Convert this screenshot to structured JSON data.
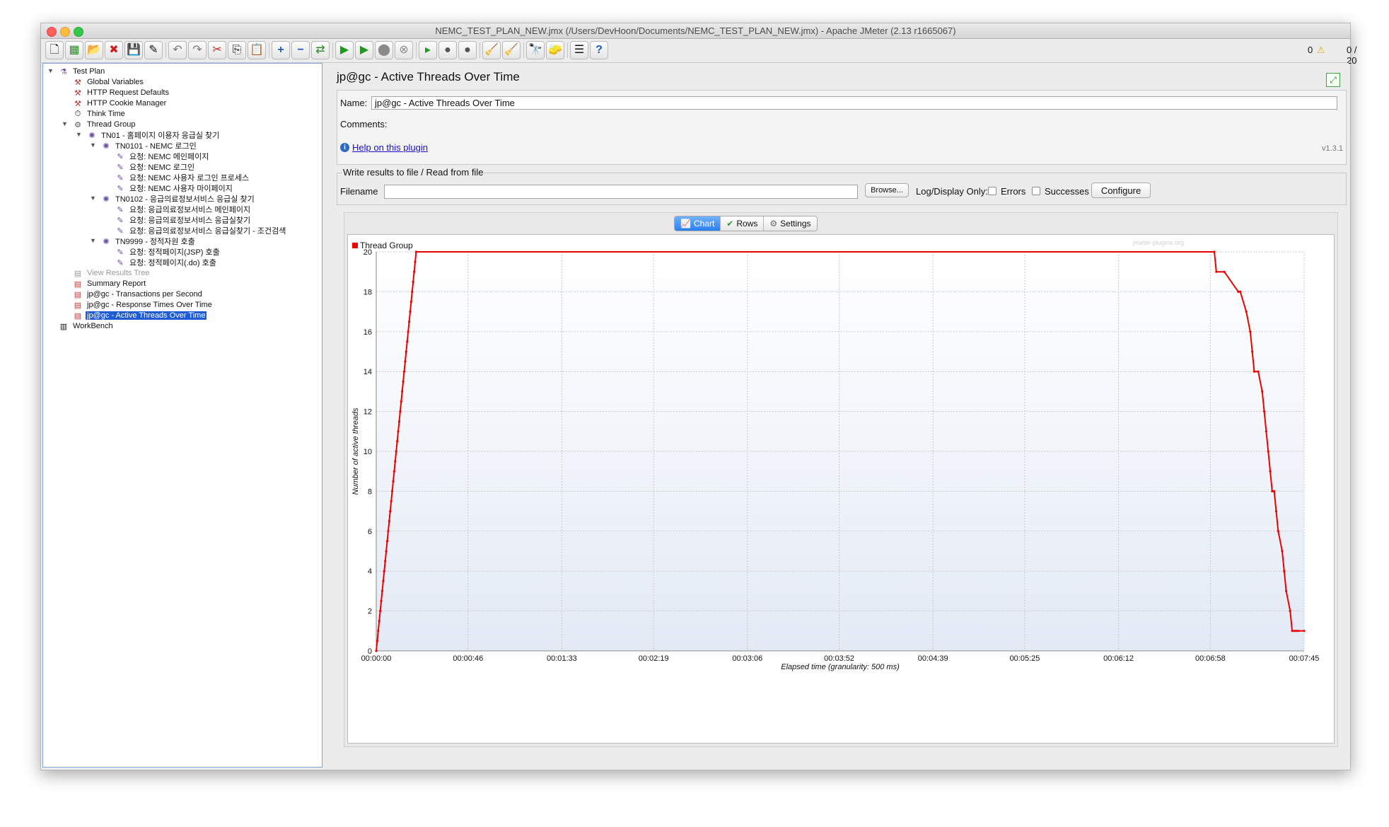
{
  "window": {
    "title": "NEMC_TEST_PLAN_NEW.jmx (/Users/DevHoon/Documents/NEMC_TEST_PLAN_NEW.jmx) - Apache JMeter (2.13 r1665067)"
  },
  "toolbar": {
    "errors_count": "0",
    "threads_status": "0 / 20"
  },
  "tree": [
    {
      "label": "Test Plan",
      "icon": "flask-icon"
    },
    {
      "label": "Global Variables",
      "icon": "config-icon"
    },
    {
      "label": "HTTP Request Defaults",
      "icon": "config-icon"
    },
    {
      "label": "HTTP Cookie Manager",
      "icon": "config-icon"
    },
    {
      "label": "Think Time",
      "icon": "timer-icon"
    },
    {
      "label": "Thread Group",
      "icon": "thread-group-icon"
    },
    {
      "label": "TN01 - 홈페이지 이용자 응급실 찾기",
      "icon": "controller-icon"
    },
    {
      "label": "TN0101 - NEMC 로그인",
      "icon": "controller-icon"
    },
    {
      "label": "요청: NEMC 메인페이지",
      "icon": "sampler-icon"
    },
    {
      "label": "요청: NEMC 로그인",
      "icon": "sampler-icon"
    },
    {
      "label": "요청: NEMC 사용자 로그인 프로세스",
      "icon": "sampler-icon"
    },
    {
      "label": "요청: NEMC 사용자 마이페이지",
      "icon": "sampler-icon"
    },
    {
      "label": "TN0102 - 응급의료정보서비스 응급실 찾기",
      "icon": "controller-icon"
    },
    {
      "label": "요청: 응급의료정보서비스 메인페이지",
      "icon": "sampler-icon"
    },
    {
      "label": "요청: 응급의료정보서비스 응급실찾기",
      "icon": "sampler-icon"
    },
    {
      "label": "요청: 응급의료정보서비스 응급실찾기 - 조건검색",
      "icon": "sampler-icon"
    },
    {
      "label": "TN9999 - 정적자원 호출",
      "icon": "controller-icon"
    },
    {
      "label": "요청: 정적페이지(JSP) 호출",
      "icon": "sampler-icon"
    },
    {
      "label": "요청: 정적페이지(.do) 호출",
      "icon": "sampler-icon"
    },
    {
      "label": "View Results Tree",
      "icon": "listener-icon"
    },
    {
      "label": "Summary Report",
      "icon": "listener-icon"
    },
    {
      "label": "jp@gc - Transactions per Second",
      "icon": "listener-icon"
    },
    {
      "label": "jp@gc - Response Times Over Time",
      "icon": "listener-icon"
    },
    {
      "label": "jp@gc - Active Threads Over Time",
      "icon": "listener-icon"
    },
    {
      "label": "WorkBench",
      "icon": "workbench-icon"
    }
  ],
  "panel": {
    "title": "jp@gc - Active Threads Over Time",
    "name_label": "Name:",
    "name_value": "jp@gc - Active Threads Over Time",
    "comments_label": "Comments:",
    "help_link": "Help on this plugin",
    "version": "v1.3.1",
    "file_section_title": "Write results to file / Read from file",
    "filename_label": "Filename",
    "browse_button": "Browse...",
    "log_display_label": "Log/Display Only:",
    "errors_label": "Errors",
    "successes_label": "Successes",
    "configure_button": "Configure"
  },
  "tabs": {
    "chart": "Chart",
    "rows": "Rows",
    "settings": "Settings"
  },
  "colors": {
    "series": "#ee0000",
    "selection": "#1e5bd5"
  },
  "chart_data": {
    "type": "line",
    "title": "",
    "watermark": "jmeter-plugins.org",
    "xlabel": "Elapsed time (granularity: 500 ms)",
    "ylabel": "Number of active threads",
    "ylim": [
      0,
      20
    ],
    "xlim": [
      0,
      465
    ],
    "x_ticks": [
      0,
      46,
      93,
      139,
      186,
      232,
      279,
      325,
      372,
      418,
      465
    ],
    "x_tick_labels": [
      "00:00:00",
      "00:00:46",
      "00:01:33",
      "00:02:19",
      "00:03:06",
      "00:03:52",
      "00:04:39",
      "00:05:25",
      "00:06:12",
      "00:06:58",
      "00:07:45"
    ],
    "y_ticks": [
      0,
      2,
      4,
      6,
      8,
      10,
      12,
      14,
      16,
      18,
      20
    ],
    "series": [
      {
        "name": "Thread Group",
        "x": [
          0,
          0.5,
          1,
          1.5,
          2,
          2.5,
          3,
          3.5,
          4,
          4.5,
          5,
          5.5,
          6,
          6.5,
          7,
          7.5,
          8,
          8.5,
          9,
          9.5,
          10,
          10.5,
          11,
          11.5,
          12,
          12.5,
          13,
          13.5,
          14,
          14.5,
          15,
          15.5,
          16,
          16.5,
          17,
          17.5,
          18,
          18.5,
          19,
          19.5,
          20,
          420,
          421,
          425,
          432,
          433,
          436,
          438,
          439,
          440,
          442,
          444,
          445,
          446,
          447,
          448,
          449,
          450,
          451,
          452,
          454,
          455,
          456,
          458,
          459,
          460,
          461,
          462,
          465
        ],
        "y": [
          0,
          0.5,
          1,
          1.5,
          2,
          2.5,
          3,
          3.5,
          4,
          4.5,
          5,
          5.5,
          6,
          6.5,
          7,
          7.5,
          8,
          8.5,
          9,
          9.5,
          10,
          10.5,
          11,
          11.5,
          12,
          12.5,
          13,
          13.5,
          14,
          14.5,
          15,
          15.5,
          16,
          16.5,
          17,
          17.5,
          18,
          18.5,
          19,
          19.5,
          20,
          20,
          19,
          19,
          18,
          18,
          17,
          16,
          15,
          14,
          14,
          13,
          12,
          11,
          10,
          9,
          8,
          8,
          7,
          6,
          5,
          4,
          3,
          2,
          1,
          1,
          1,
          1,
          1
        ]
      }
    ]
  }
}
